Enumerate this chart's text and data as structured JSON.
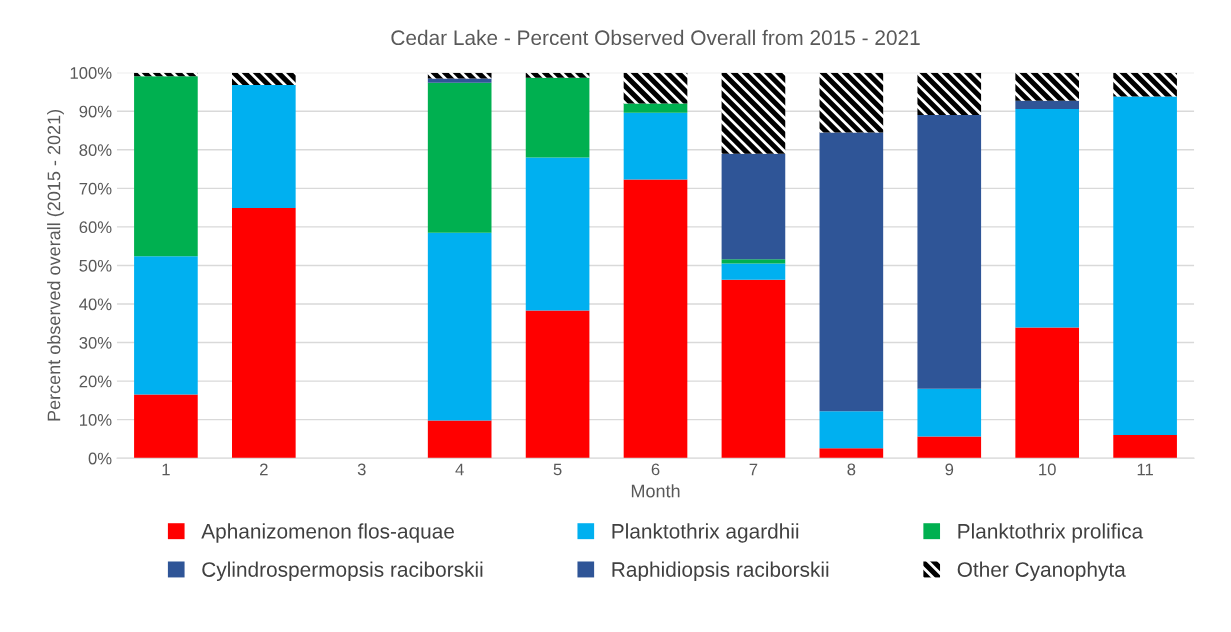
{
  "chart_data": {
    "type": "bar",
    "stacked": true,
    "title": "Cedar Lake - Percent Observed Overall from 2015 - 2021",
    "xlabel": "Month",
    "ylabel": "Percent observed overall (2015 - 2021)",
    "categories": [
      "1",
      "2",
      "3",
      "4",
      "5",
      "6",
      "7",
      "8",
      "9",
      "10",
      "11"
    ],
    "series": [
      {
        "name": "Aphanizomenon flos-aquae",
        "color": "#ff0000",
        "values": [
          16.5,
          64.9,
          null,
          9.8,
          38.3,
          72.3,
          46.3,
          2.6,
          5.6,
          33.9,
          6.0
        ]
      },
      {
        "name": "Planktothrix agardhii",
        "color": "#00b0f0",
        "values": [
          35.9,
          31.9,
          null,
          48.7,
          39.7,
          17.3,
          4.2,
          9.6,
          12.4,
          56.7,
          87.8
        ]
      },
      {
        "name": "Planktothrix prolifica",
        "color": "#00b050",
        "values": [
          46.7,
          null,
          null,
          38.9,
          20.7,
          2.4,
          1.1,
          null,
          null,
          null,
          null
        ]
      },
      {
        "name": "Cylindrospermopsis raciborskii",
        "color": "#2f5597",
        "values": [
          null,
          null,
          null,
          1.1,
          null,
          null,
          27.4,
          72.3,
          71.0,
          2.1,
          null
        ]
      },
      {
        "name": "Raphidiopsis raciborskii",
        "color": "#2f5597",
        "values": [
          null,
          null,
          null,
          null,
          null,
          null,
          null,
          null,
          null,
          null,
          null
        ]
      },
      {
        "name": "Other Cyanophyta",
        "color": "#000000",
        "values": [
          0.9,
          3.2,
          null,
          1.5,
          1.3,
          8.0,
          21.0,
          15.5,
          11.0,
          7.3,
          6.2
        ]
      }
    ],
    "ylim": [
      0,
      100
    ],
    "yticks": [
      {
        "value": 0,
        "label": "0%"
      },
      {
        "value": 10,
        "label": "10%"
      },
      {
        "value": 20,
        "label": "20%"
      },
      {
        "value": 30,
        "label": "30%"
      },
      {
        "value": 40,
        "label": "40%"
      },
      {
        "value": 50,
        "label": "50%"
      },
      {
        "value": 60,
        "label": "60%"
      },
      {
        "value": 70,
        "label": "70%"
      },
      {
        "value": 80,
        "label": "80%"
      },
      {
        "value": 90,
        "label": "90%"
      },
      {
        "value": 100,
        "label": "100%"
      }
    ],
    "grid": "y",
    "legend": "bottom"
  }
}
